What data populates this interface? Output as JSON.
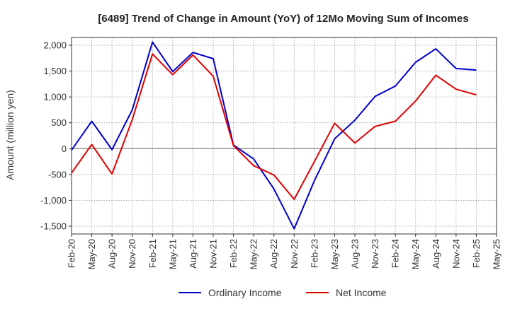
{
  "chart_data": {
    "type": "line",
    "title": "[6489]  Trend of Change in Amount (YoY) of 12Mo Moving Sum of Incomes",
    "xlabel": "",
    "ylabel": "Amount (million yen)",
    "ylim": [
      -1650,
      2150
    ],
    "yticks": [
      2000,
      1500,
      1000,
      500,
      0,
      -500,
      -1000,
      -1500
    ],
    "ytick_labels": [
      "2,000",
      "1,500",
      "1,000",
      "500",
      "0",
      "-500",
      "-1,000",
      "-1,500"
    ],
    "categories": [
      "Feb-20",
      "May-20",
      "Aug-20",
      "Nov-20",
      "Feb-21",
      "May-21",
      "Aug-21",
      "Nov-21",
      "Feb-22",
      "May-22",
      "Aug-22",
      "Nov-22",
      "Feb-23",
      "May-23",
      "Aug-23",
      "Nov-23",
      "Feb-24",
      "May-24",
      "Aug-24",
      "Nov-24",
      "Feb-25",
      "May-25"
    ],
    "grid": true,
    "legend_position": "bottom",
    "series": [
      {
        "name": "Ordinary Income",
        "color": "#0000cc",
        "values": [
          -30,
          530,
          -20,
          750,
          2060,
          1490,
          1860,
          1740,
          70,
          -200,
          -780,
          -1550,
          -620,
          190,
          550,
          1010,
          1210,
          1670,
          1930,
          1550,
          1520,
          null
        ]
      },
      {
        "name": "Net Income",
        "color": "#e00000",
        "values": [
          -470,
          80,
          -490,
          560,
          1830,
          1430,
          1810,
          1400,
          60,
          -330,
          -510,
          -980,
          -250,
          490,
          110,
          430,
          530,
          920,
          1420,
          1150,
          1040,
          null
        ]
      }
    ]
  }
}
